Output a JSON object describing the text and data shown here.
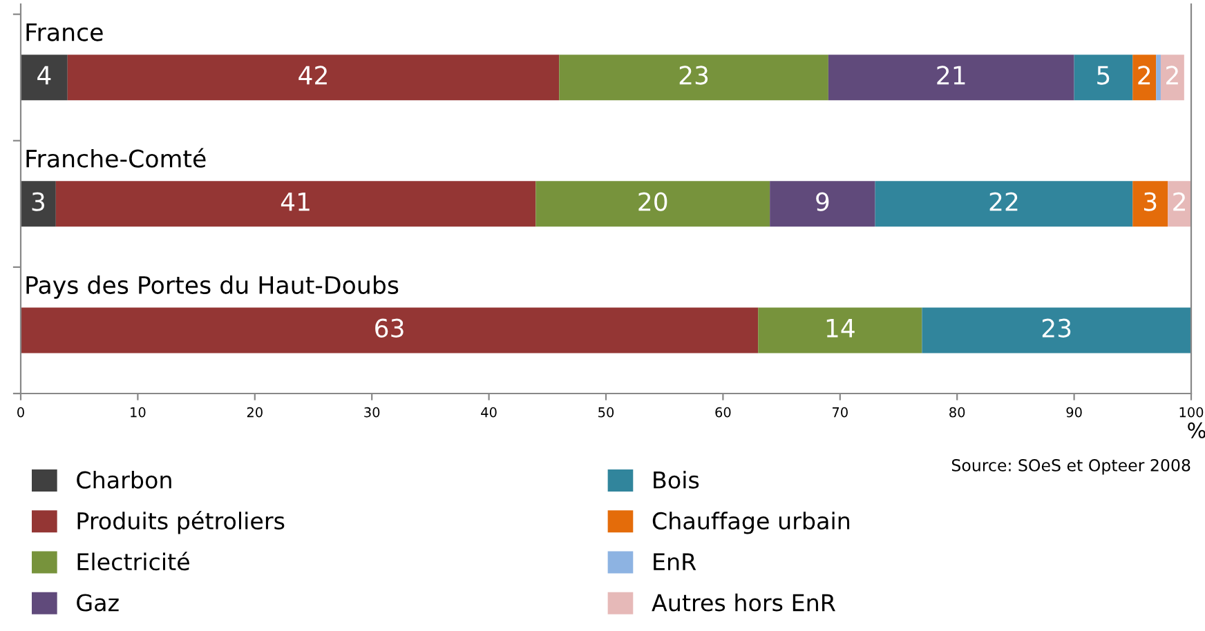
{
  "chart_data": {
    "type": "bar",
    "orientation": "horizontal",
    "stacked": true,
    "categories": [
      "France",
      "Franche-Comté",
      "Pays des Portes du Haut-Doubs"
    ],
    "series": [
      {
        "name": "Charbon",
        "color": "#404040",
        "values": [
          4,
          3,
          null
        ],
        "value_labels": [
          "4",
          "3",
          null
        ]
      },
      {
        "name": "Produits pétroliers",
        "color": "#943634",
        "values": [
          42,
          41,
          63
        ],
        "value_labels": [
          "42",
          "41",
          "63"
        ]
      },
      {
        "name": "Electricité",
        "color": "#77933c",
        "values": [
          23,
          20,
          14
        ],
        "value_labels": [
          "23",
          "20",
          "14"
        ]
      },
      {
        "name": "Gaz",
        "color": "#604a7b",
        "values": [
          21,
          9,
          null
        ],
        "value_labels": [
          "21",
          "9",
          null
        ]
      },
      {
        "name": "Bois",
        "color": "#31859c",
        "values": [
          5,
          22,
          23
        ],
        "value_labels": [
          "5",
          "22",
          "23"
        ]
      },
      {
        "name": "Chauffage urbain",
        "color": "#e46c0a",
        "values": [
          2,
          3,
          null
        ],
        "value_labels": [
          "2",
          "3",
          null
        ]
      },
      {
        "name": "EnR",
        "color": "#8db3e2",
        "values": [
          0.4,
          null,
          null
        ],
        "value_labels": [
          null,
          null,
          null
        ]
      },
      {
        "name": "Autres hors EnR",
        "color": "#e6b9b8",
        "values": [
          2,
          2,
          null
        ],
        "value_labels": [
          "2",
          "2",
          null
        ]
      }
    ],
    "xlim": [
      0,
      100
    ],
    "xticks": [
      0,
      10,
      20,
      30,
      40,
      50,
      60,
      70,
      80,
      90,
      100
    ],
    "xlabel": "%",
    "grid": false,
    "legend": "bottom",
    "annotations": [
      "Source: SOeS et Opteer 2008"
    ]
  }
}
